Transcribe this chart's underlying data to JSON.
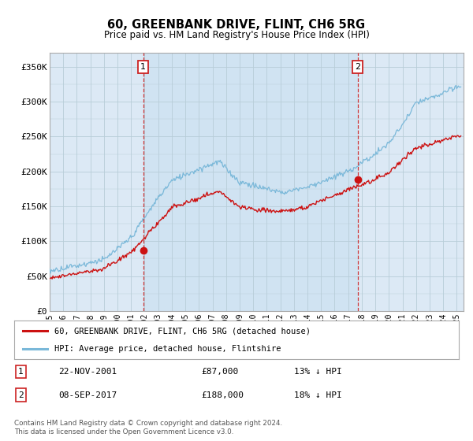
{
  "title": "60, GREENBANK DRIVE, FLINT, CH6 5RG",
  "subtitle": "Price paid vs. HM Land Registry's House Price Index (HPI)",
  "plot_bg_color": "#dce9f5",
  "ylabel_ticks": [
    "£0",
    "£50K",
    "£100K",
    "£150K",
    "£200K",
    "£250K",
    "£300K",
    "£350K"
  ],
  "ytick_values": [
    0,
    50000,
    100000,
    150000,
    200000,
    250000,
    300000,
    350000
  ],
  "ylim": [
    0,
    370000
  ],
  "xlim_start": 1995.0,
  "xlim_end": 2025.5,
  "marker1_x": 2001.9,
  "marker1_y": 87000,
  "marker1_date": "22-NOV-2001",
  "marker1_price": "£87,000",
  "marker1_hpi": "13% ↓ HPI",
  "marker2_x": 2017.7,
  "marker2_y": 188000,
  "marker2_date": "08-SEP-2017",
  "marker2_price": "£188,000",
  "marker2_hpi": "18% ↓ HPI",
  "hpi_color": "#7ab8d9",
  "price_color": "#cc1111",
  "vline_color": "#cc2222",
  "shade_color": "#c5dff0",
  "legend_label1": "60, GREENBANK DRIVE, FLINT, CH6 5RG (detached house)",
  "legend_label2": "HPI: Average price, detached house, Flintshire",
  "footer": "Contains HM Land Registry data © Crown copyright and database right 2024.\nThis data is licensed under the Open Government Licence v3.0."
}
